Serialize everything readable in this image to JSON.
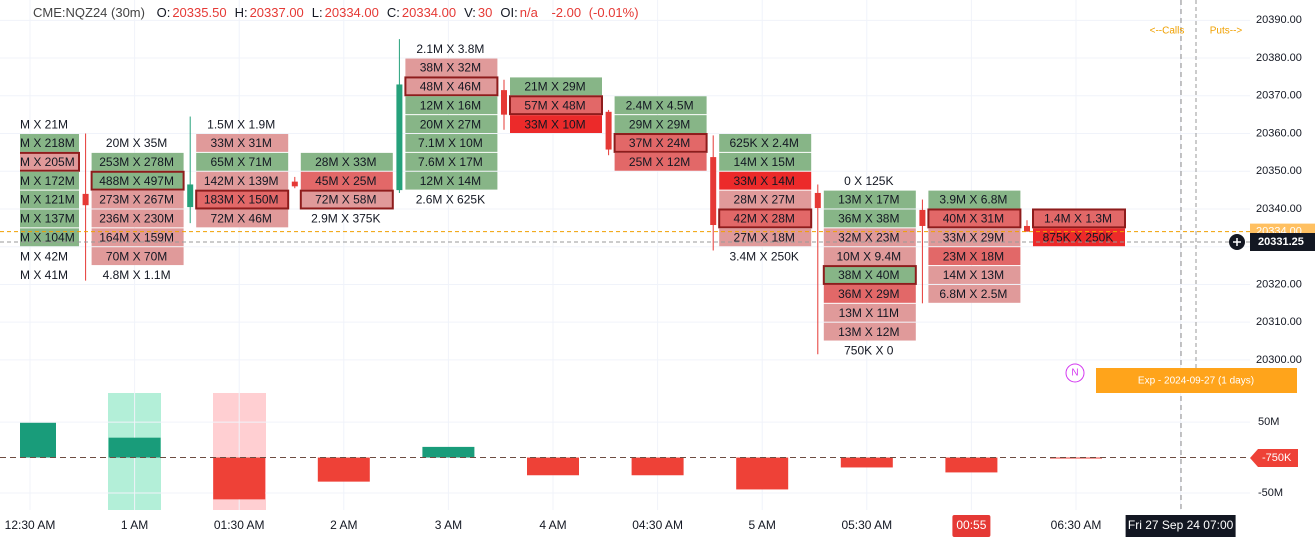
{
  "header": {
    "symbol": "CME:NQZ24 (30m)",
    "fields": [
      [
        "O:",
        "20335.50"
      ],
      [
        "H:",
        "20337.00"
      ],
      [
        "L:",
        "20334.00"
      ],
      [
        "C:",
        "20334.00"
      ],
      [
        "V:",
        "30"
      ],
      [
        "OI:",
        "n/a"
      ]
    ],
    "change": "-2.00",
    "change_pct": "(-0.01%)"
  },
  "chart_data": [
    {
      "type": "footprint",
      "categories": [
        "12:30 AM",
        "1 AM",
        "01:30 AM",
        "2 AM",
        "3 AM",
        "4 AM",
        "04:30 AM",
        "5 AM",
        "05:30 AM",
        "00:55",
        "06:30 AM",
        "Fri 27 Sep 24 07:00"
      ],
      "ylim": [
        20296,
        20393
      ],
      "yticks": [
        {
          "value": 20300,
          "label": "20300.00"
        },
        {
          "value": 20310,
          "label": "20310.00"
        },
        {
          "value": 20320,
          "label": "20320.00"
        },
        {
          "value": 20330,
          "label": "20330.00"
        },
        {
          "value": 20340,
          "label": "20340.00"
        },
        {
          "value": 20350,
          "label": "20350.00"
        },
        {
          "value": 20360,
          "label": "20360.00"
        },
        {
          "value": 20370,
          "label": "20370.00"
        },
        {
          "value": 20380,
          "label": "20380.00"
        },
        {
          "value": 20390,
          "label": "20390.00"
        }
      ],
      "grid": true,
      "up_color": "#26a17b",
      "down_color": "#e53935",
      "highlight_color": "#8e1c1c",
      "last_price": 20331.25,
      "close_line": {
        "value": 20334,
        "label": "20334.00"
      },
      "annotations": {
        "calls": "<--Calls",
        "puts": "Puts-->",
        "expiry": "Exp - 2024-09-27 (1 days)",
        "marker": "N"
      },
      "columns": [
        {
          "candle": null,
          "cells": [
            {
              "p": 20360,
              "t": "M X 21M",
              "c": null
            },
            {
              "p": 20355,
              "t": "M X 218M",
              "c": "#87b587"
            },
            {
              "p": 20350,
              "t": "M X 205M",
              "c": "#e09a9a",
              "h": true
            },
            {
              "p": 20345,
              "t": "M X 172M",
              "c": "#87b587"
            },
            {
              "p": 20340,
              "t": "M X 121M",
              "c": "#87b587"
            },
            {
              "p": 20335,
              "t": "M X 137M",
              "c": "#87b587"
            },
            {
              "p": 20330,
              "t": "M X 104M",
              "c": "#87b587"
            },
            {
              "p": 20325,
              "t": "M X 42M",
              "c": null
            },
            {
              "p": 20320,
              "t": "M X 41M",
              "c": null
            }
          ]
        },
        {
          "candle": [
            20344,
            20360,
            20321,
            20341
          ],
          "cells": [
            {
              "p": 20355,
              "t": "20M X 35M",
              "c": null
            },
            {
              "p": 20350,
              "t": "253M X 278M",
              "c": "#87b587"
            },
            {
              "p": 20345,
              "t": "488M X 497M",
              "c": "#87b587",
              "h": true
            },
            {
              "p": 20340,
              "t": "273M X 267M",
              "c": "#e09a9a"
            },
            {
              "p": 20335,
              "t": "236M X 230M",
              "c": "#e09a9a"
            },
            {
              "p": 20330,
              "t": "164M X 159M",
              "c": "#e09a9a"
            },
            {
              "p": 20325,
              "t": "70M X 70M",
              "c": "#e09a9a"
            },
            {
              "p": 20320,
              "t": "4.8M X 1.1M",
              "c": null
            }
          ]
        },
        {
          "candle": [
            20340.5,
            20364.5,
            20336.25,
            20346.5
          ],
          "cells": [
            {
              "p": 20360,
              "t": "1.5M X 1.9M",
              "c": null
            },
            {
              "p": 20355,
              "t": "33M X 31M",
              "c": "#e09a9a"
            },
            {
              "p": 20350,
              "t": "65M X 71M",
              "c": "#87b587"
            },
            {
              "p": 20345,
              "t": "142M X 139M",
              "c": "#e09a9a"
            },
            {
              "p": 20340,
              "t": "183M X 150M",
              "c": "#e26868",
              "h": true
            },
            {
              "p": 20335,
              "t": "72M X 46M",
              "c": "#e09a9a"
            }
          ]
        },
        {
          "candle": [
            20347.25,
            20348.5,
            20345.5,
            20346
          ],
          "cells": [
            {
              "p": 20350,
              "t": "28M X 33M",
              "c": "#87b587"
            },
            {
              "p": 20345,
              "t": "45M X 25M",
              "c": "#e26868"
            },
            {
              "p": 20340,
              "t": "72M X 58M",
              "c": "#e09a9a",
              "h": true
            },
            {
              "p": 20335,
              "t": "2.9M X 375K",
              "c": null
            }
          ]
        },
        {
          "candle": [
            20345,
            20385,
            20344.25,
            20373
          ],
          "cells": [
            {
              "p": 20380,
              "t": "2.1M X 3.8M",
              "c": null
            },
            {
              "p": 20375,
              "t": "38M X 32M",
              "c": "#e09a9a"
            },
            {
              "p": 20370,
              "t": "48M X 46M",
              "c": "#e09a9a",
              "h": true
            },
            {
              "p": 20365,
              "t": "12M X 16M",
              "c": "#87b587"
            },
            {
              "p": 20360,
              "t": "20M X 27M",
              "c": "#87b587"
            },
            {
              "p": 20355,
              "t": "7.1M X 10M",
              "c": "#87b587"
            },
            {
              "p": 20350,
              "t": "7.6M X 17M",
              "c": "#87b587"
            },
            {
              "p": 20345,
              "t": "12M X 14M",
              "c": "#87b587"
            },
            {
              "p": 20340,
              "t": "2.6M X 625K",
              "c": null
            }
          ]
        },
        {
          "candle": [
            20371.5,
            20374.25,
            20361,
            20365
          ],
          "cells": [
            {
              "p": 20370,
              "t": "21M X 29M",
              "c": "#87b587"
            },
            {
              "p": 20365,
              "t": "57M X 48M",
              "c": "#e26868",
              "h": true
            },
            {
              "p": 20360,
              "t": "33M X 10M",
              "c": "#ec2a2a"
            }
          ]
        },
        {
          "candle": [
            20365.75,
            20366.25,
            20354.25,
            20355.75
          ],
          "cells": [
            {
              "p": 20365,
              "t": "2.4M X 4.5M",
              "c": "#87b587"
            },
            {
              "p": 20360,
              "t": "29M X 29M",
              "c": "#87b587"
            },
            {
              "p": 20355,
              "t": "37M X 24M",
              "c": "#e26868",
              "h": true
            },
            {
              "p": 20350,
              "t": "25M X 12M",
              "c": "#e26868"
            }
          ]
        },
        {
          "candle": [
            20353.75,
            20359.5,
            20329,
            20335.75
          ],
          "cells": [
            {
              "p": 20355,
              "t": "625K X 2.4M",
              "c": "#87b587"
            },
            {
              "p": 20350,
              "t": "14M X 15M",
              "c": "#87b587"
            },
            {
              "p": 20345,
              "t": "33M X 14M",
              "c": "#ec2a2a"
            },
            {
              "p": 20340,
              "t": "28M X 27M",
              "c": "#e09a9a"
            },
            {
              "p": 20335,
              "t": "42M X 28M",
              "c": "#e26868",
              "h": true
            },
            {
              "p": 20330,
              "t": "27M X 18M",
              "c": "#e09a9a"
            },
            {
              "p": 20325,
              "t": "3.4M X 250K",
              "c": null
            }
          ]
        },
        {
          "candle": [
            20344.25,
            20346.5,
            20301.5,
            20340.25
          ],
          "cells": [
            {
              "p": 20345,
              "t": "0 X 125K",
              "c": null
            },
            {
              "p": 20340,
              "t": "13M X 17M",
              "c": "#87b587"
            },
            {
              "p": 20335,
              "t": "36M X 38M",
              "c": "#87b587"
            },
            {
              "p": 20330,
              "t": "32M X 23M",
              "c": "#e09a9a"
            },
            {
              "p": 20325,
              "t": "10M X 9.4M",
              "c": "#e09a9a"
            },
            {
              "p": 20320,
              "t": "38M X 40M",
              "c": "#87b587",
              "h": true
            },
            {
              "p": 20315,
              "t": "36M X 29M",
              "c": "#e26868"
            },
            {
              "p": 20310,
              "t": "13M X 11M",
              "c": "#e09a9a"
            },
            {
              "p": 20305,
              "t": "13M X 12M",
              "c": "#e09a9a"
            },
            {
              "p": 20300,
              "t": "750K X 0",
              "c": null
            }
          ]
        },
        {
          "candle": [
            20339.75,
            20342.5,
            20315,
            20335.5
          ],
          "cells": [
            {
              "p": 20340,
              "t": "3.9M X 6.8M",
              "c": "#87b587"
            },
            {
              "p": 20335,
              "t": "40M X 31M",
              "c": "#e26868",
              "h": true
            },
            {
              "p": 20330,
              "t": "33M X 29M",
              "c": "#e09a9a"
            },
            {
              "p": 20325,
              "t": "23M X 18M",
              "c": "#e26868"
            },
            {
              "p": 20320,
              "t": "14M X 13M",
              "c": "#e09a9a"
            },
            {
              "p": 20315,
              "t": "6.8M X 2.5M",
              "c": "#e09a9a"
            }
          ]
        },
        {
          "candle": [
            20335.5,
            20337,
            20334,
            20334
          ],
          "cells": [
            {
              "p": 20335,
              "t": "1.4M X 1.3M",
              "c": "#e26868",
              "h": true
            },
            {
              "p": 20330,
              "t": "875K X 250K",
              "c": "#ec2a2a"
            }
          ]
        }
      ]
    },
    {
      "type": "bar",
      "values": [
        49,
        28,
        -59,
        -34,
        15,
        -25,
        -25,
        -45,
        -14,
        -21,
        -0.75
      ],
      "up_color": "#199c7a",
      "down_color": "#ee4137",
      "ylim": [
        -74,
        91
      ],
      "yticks": [
        {
          "value": -50,
          "label": "-50M"
        },
        {
          "value": 50,
          "label": "50M"
        }
      ],
      "last": {
        "value": -0.75,
        "label": "-750K"
      }
    }
  ]
}
